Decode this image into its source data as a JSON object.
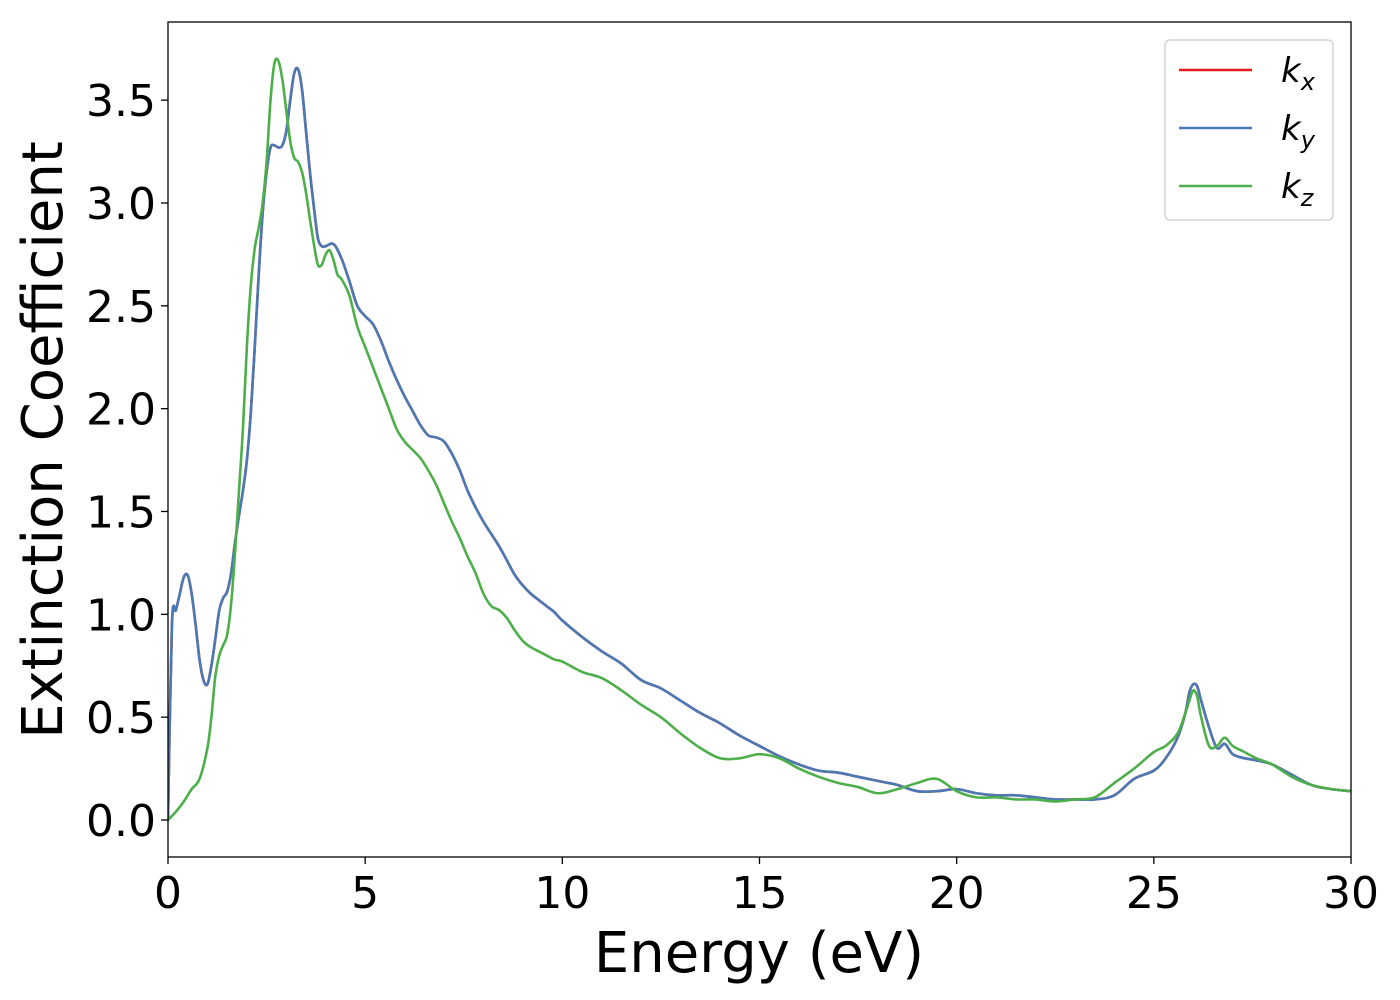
{
  "chart_data": {
    "type": "line",
    "title": "",
    "xlabel": "Energy (eV)",
    "ylabel": "Extinction Coefficient",
    "xlim": [
      0,
      30
    ],
    "ylim": [
      -0.18,
      3.88
    ],
    "xticks": [
      0,
      5,
      10,
      15,
      20,
      25,
      30
    ],
    "xtick_labels": [
      "0",
      "5",
      "10",
      "15",
      "20",
      "25",
      "30"
    ],
    "yticks": [
      0.0,
      0.5,
      1.0,
      1.5,
      2.0,
      2.5,
      3.0,
      3.5
    ],
    "ytick_labels": [
      "0.0",
      "0.5",
      "1.0",
      "1.5",
      "2.0",
      "2.5",
      "3.0",
      "3.5"
    ],
    "grid": false,
    "legend_position": "top-right",
    "series": [
      {
        "name": "k_x",
        "legend_base": "k",
        "legend_sub": "x",
        "color": "#e41a1c",
        "x": [
          0,
          0.1,
          0.2,
          0.3,
          0.4,
          0.5,
          0.6,
          0.7,
          0.8,
          0.9,
          1.0,
          1.1,
          1.2,
          1.3,
          1.4,
          1.5,
          1.6,
          1.7,
          1.8,
          1.9,
          2.0,
          2.1,
          2.2,
          2.3,
          2.4,
          2.5,
          2.6,
          2.7,
          2.8,
          2.9,
          3.0,
          3.1,
          3.2,
          3.3,
          3.4,
          3.5,
          3.6,
          3.7,
          3.8,
          3.9,
          4.0,
          4.2,
          4.4,
          4.6,
          4.8,
          5.0,
          5.2,
          5.4,
          5.6,
          5.8,
          6.0,
          6.2,
          6.4,
          6.6,
          6.8,
          7.0,
          7.2,
          7.4,
          7.6,
          7.8,
          8.0,
          8.2,
          8.4,
          8.6,
          8.8,
          9.0,
          9.2,
          9.4,
          9.6,
          9.8,
          10.0,
          10.5,
          11.0,
          11.5,
          12.0,
          12.5,
          13.0,
          13.5,
          14.0,
          14.5,
          15.0,
          15.5,
          16.0,
          16.5,
          17.0,
          17.5,
          18.0,
          18.5,
          19.0,
          19.5,
          20.0,
          20.5,
          21.0,
          21.5,
          22.0,
          22.5,
          23.0,
          23.5,
          24.0,
          24.5,
          25.0,
          25.3,
          25.6,
          25.8,
          25.9,
          26.0,
          26.1,
          26.2,
          26.4,
          26.6,
          26.8,
          27.0,
          27.3,
          27.6,
          28.0,
          28.5,
          29.0,
          29.5,
          30.0
        ],
        "y": [
          0,
          0.95,
          1.02,
          1.1,
          1.18,
          1.19,
          1.1,
          0.95,
          0.78,
          0.68,
          0.66,
          0.75,
          0.88,
          1.02,
          1.08,
          1.11,
          1.2,
          1.35,
          1.48,
          1.6,
          1.75,
          1.98,
          2.3,
          2.65,
          2.95,
          3.15,
          3.27,
          3.28,
          3.27,
          3.28,
          3.35,
          3.5,
          3.63,
          3.65,
          3.55,
          3.35,
          3.15,
          2.98,
          2.83,
          2.79,
          2.79,
          2.8,
          2.73,
          2.62,
          2.5,
          2.45,
          2.41,
          2.33,
          2.23,
          2.14,
          2.06,
          1.99,
          1.92,
          1.87,
          1.86,
          1.84,
          1.78,
          1.7,
          1.6,
          1.52,
          1.45,
          1.39,
          1.33,
          1.26,
          1.19,
          1.14,
          1.1,
          1.07,
          1.04,
          1.01,
          0.97,
          0.89,
          0.82,
          0.76,
          0.68,
          0.64,
          0.58,
          0.52,
          0.47,
          0.41,
          0.36,
          0.31,
          0.27,
          0.24,
          0.23,
          0.21,
          0.19,
          0.17,
          0.14,
          0.14,
          0.15,
          0.13,
          0.12,
          0.12,
          0.11,
          0.1,
          0.1,
          0.1,
          0.12,
          0.2,
          0.24,
          0.3,
          0.4,
          0.52,
          0.62,
          0.66,
          0.65,
          0.58,
          0.45,
          0.35,
          0.37,
          0.32,
          0.3,
          0.29,
          0.27,
          0.22,
          0.17,
          0.15,
          0.14
        ]
      },
      {
        "name": "k_y",
        "legend_base": "k",
        "legend_sub": "y",
        "color": "#4a7ab5",
        "x": [
          0,
          0.1,
          0.2,
          0.3,
          0.4,
          0.5,
          0.6,
          0.7,
          0.8,
          0.9,
          1.0,
          1.1,
          1.2,
          1.3,
          1.4,
          1.5,
          1.6,
          1.7,
          1.8,
          1.9,
          2.0,
          2.1,
          2.2,
          2.3,
          2.4,
          2.5,
          2.6,
          2.7,
          2.8,
          2.9,
          3.0,
          3.1,
          3.2,
          3.3,
          3.4,
          3.5,
          3.6,
          3.7,
          3.8,
          3.9,
          4.0,
          4.2,
          4.4,
          4.6,
          4.8,
          5.0,
          5.2,
          5.4,
          5.6,
          5.8,
          6.0,
          6.2,
          6.4,
          6.6,
          6.8,
          7.0,
          7.2,
          7.4,
          7.6,
          7.8,
          8.0,
          8.2,
          8.4,
          8.6,
          8.8,
          9.0,
          9.2,
          9.4,
          9.6,
          9.8,
          10.0,
          10.5,
          11.0,
          11.5,
          12.0,
          12.5,
          13.0,
          13.5,
          14.0,
          14.5,
          15.0,
          15.5,
          16.0,
          16.5,
          17.0,
          17.5,
          18.0,
          18.5,
          19.0,
          19.5,
          20.0,
          20.5,
          21.0,
          21.5,
          22.0,
          22.5,
          23.0,
          23.5,
          24.0,
          24.5,
          25.0,
          25.3,
          25.6,
          25.8,
          25.9,
          26.0,
          26.1,
          26.2,
          26.4,
          26.6,
          26.8,
          27.0,
          27.3,
          27.6,
          28.0,
          28.5,
          29.0,
          29.5,
          30.0
        ],
        "y": [
          0,
          0.95,
          1.02,
          1.1,
          1.18,
          1.19,
          1.1,
          0.95,
          0.78,
          0.68,
          0.66,
          0.75,
          0.88,
          1.02,
          1.08,
          1.11,
          1.2,
          1.35,
          1.48,
          1.6,
          1.75,
          1.98,
          2.3,
          2.65,
          2.95,
          3.15,
          3.27,
          3.28,
          3.27,
          3.28,
          3.35,
          3.5,
          3.63,
          3.65,
          3.55,
          3.35,
          3.15,
          2.98,
          2.83,
          2.79,
          2.79,
          2.8,
          2.73,
          2.62,
          2.5,
          2.45,
          2.41,
          2.33,
          2.23,
          2.14,
          2.06,
          1.99,
          1.92,
          1.87,
          1.86,
          1.84,
          1.78,
          1.7,
          1.6,
          1.52,
          1.45,
          1.39,
          1.33,
          1.26,
          1.19,
          1.14,
          1.1,
          1.07,
          1.04,
          1.01,
          0.97,
          0.89,
          0.82,
          0.76,
          0.68,
          0.64,
          0.58,
          0.52,
          0.47,
          0.41,
          0.36,
          0.31,
          0.27,
          0.24,
          0.23,
          0.21,
          0.19,
          0.17,
          0.14,
          0.14,
          0.15,
          0.13,
          0.12,
          0.12,
          0.11,
          0.1,
          0.1,
          0.1,
          0.12,
          0.2,
          0.24,
          0.3,
          0.4,
          0.52,
          0.62,
          0.66,
          0.65,
          0.58,
          0.45,
          0.35,
          0.37,
          0.32,
          0.3,
          0.29,
          0.27,
          0.22,
          0.17,
          0.15,
          0.14
        ]
      },
      {
        "name": "k_z",
        "legend_base": "k",
        "legend_sub": "z",
        "color": "#4daf4a",
        "x": [
          0,
          0.2,
          0.4,
          0.6,
          0.8,
          1.0,
          1.1,
          1.2,
          1.3,
          1.4,
          1.5,
          1.6,
          1.7,
          1.8,
          1.9,
          2.0,
          2.1,
          2.2,
          2.3,
          2.4,
          2.5,
          2.6,
          2.7,
          2.8,
          2.9,
          3.0,
          3.1,
          3.2,
          3.3,
          3.4,
          3.5,
          3.6,
          3.7,
          3.8,
          3.9,
          4.0,
          4.1,
          4.2,
          4.3,
          4.4,
          4.6,
          4.8,
          5.0,
          5.2,
          5.4,
          5.6,
          5.8,
          6.0,
          6.2,
          6.4,
          6.6,
          6.8,
          7.0,
          7.2,
          7.4,
          7.6,
          7.8,
          8.0,
          8.2,
          8.4,
          8.6,
          8.8,
          9.0,
          9.2,
          9.4,
          9.6,
          9.8,
          10.0,
          10.5,
          11.0,
          11.5,
          12.0,
          12.5,
          13.0,
          13.5,
          14.0,
          14.5,
          15.0,
          15.5,
          16.0,
          16.5,
          17.0,
          17.5,
          18.0,
          18.5,
          19.0,
          19.5,
          20.0,
          20.5,
          21.0,
          21.5,
          22.0,
          22.5,
          23.0,
          23.5,
          24.0,
          24.5,
          25.0,
          25.3,
          25.6,
          25.8,
          25.9,
          26.0,
          26.1,
          26.2,
          26.4,
          26.6,
          26.8,
          27.0,
          27.3,
          27.6,
          28.0,
          28.5,
          29.0,
          29.5,
          30.0
        ],
        "y": [
          0,
          0.04,
          0.09,
          0.15,
          0.2,
          0.35,
          0.5,
          0.7,
          0.8,
          0.85,
          0.9,
          1.05,
          1.3,
          1.6,
          1.9,
          2.3,
          2.6,
          2.78,
          2.88,
          3.0,
          3.2,
          3.5,
          3.68,
          3.69,
          3.6,
          3.45,
          3.3,
          3.22,
          3.2,
          3.15,
          3.05,
          2.92,
          2.8,
          2.7,
          2.7,
          2.75,
          2.77,
          2.72,
          2.65,
          2.63,
          2.55,
          2.4,
          2.3,
          2.2,
          2.1,
          2.0,
          1.9,
          1.84,
          1.8,
          1.76,
          1.7,
          1.63,
          1.54,
          1.45,
          1.37,
          1.28,
          1.2,
          1.1,
          1.04,
          1.02,
          0.98,
          0.92,
          0.87,
          0.84,
          0.82,
          0.8,
          0.78,
          0.77,
          0.72,
          0.69,
          0.63,
          0.56,
          0.5,
          0.42,
          0.35,
          0.3,
          0.3,
          0.32,
          0.3,
          0.25,
          0.21,
          0.18,
          0.16,
          0.13,
          0.15,
          0.18,
          0.2,
          0.14,
          0.11,
          0.11,
          0.1,
          0.1,
          0.09,
          0.1,
          0.11,
          0.18,
          0.25,
          0.33,
          0.36,
          0.42,
          0.52,
          0.58,
          0.63,
          0.6,
          0.5,
          0.36,
          0.36,
          0.4,
          0.36,
          0.33,
          0.3,
          0.27,
          0.21,
          0.17,
          0.15,
          0.14
        ]
      }
    ]
  }
}
